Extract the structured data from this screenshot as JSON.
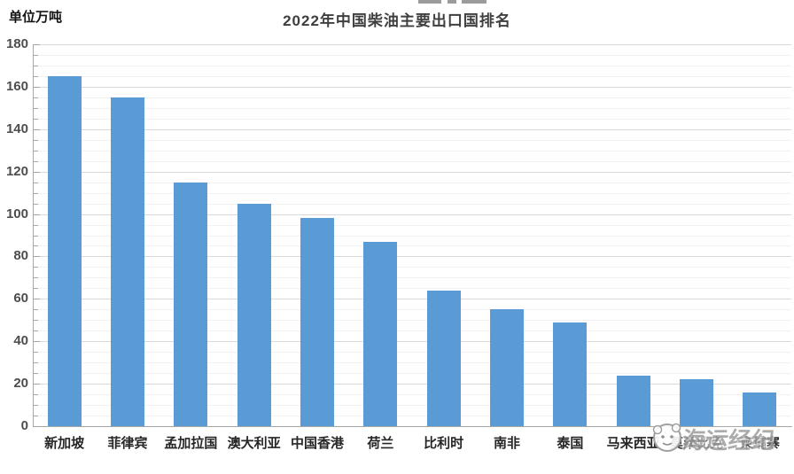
{
  "header": {
    "unit_label": "单位万吨",
    "title": "2022年中国柴油主要出口国排名"
  },
  "chart_data": {
    "type": "bar",
    "title": "2022年中国柴油主要出口国排名",
    "unit_label": "单位万吨",
    "xlabel": "",
    "ylabel": "单位万吨",
    "categories": [
      "新加坡",
      "菲律宾",
      "孟加拉国",
      "澳大利亚",
      "中国香港",
      "荷兰",
      "比利时",
      "南非",
      "泰国",
      "马来西亚",
      "莫桑比克",
      "柬埔寨"
    ],
    "values": [
      165,
      155,
      115,
      105,
      98,
      87,
      64,
      55,
      49,
      24,
      22,
      16
    ],
    "ylim": [
      0,
      180
    ],
    "y_major_step": 20,
    "y_minor_step": 5,
    "y_tick_labels": [
      "0",
      "20",
      "40",
      "60",
      "80",
      "100",
      "120",
      "140",
      "160",
      "180"
    ],
    "grid": true,
    "legend_position": "none",
    "bar_color": "#5b9bd5",
    "major_gridline_color": "#d9d9d9",
    "minor_gridline_color": "#f2f2f2",
    "axis_color": "#a6a6a6",
    "tick_label_color": "#4d4d4d",
    "category_label_color": "#262626",
    "title_color": "#3f3f3f"
  },
  "watermark": {
    "text": "海运经纪",
    "color": "#9d9d9d",
    "logo": "mascot-circle-logo"
  }
}
